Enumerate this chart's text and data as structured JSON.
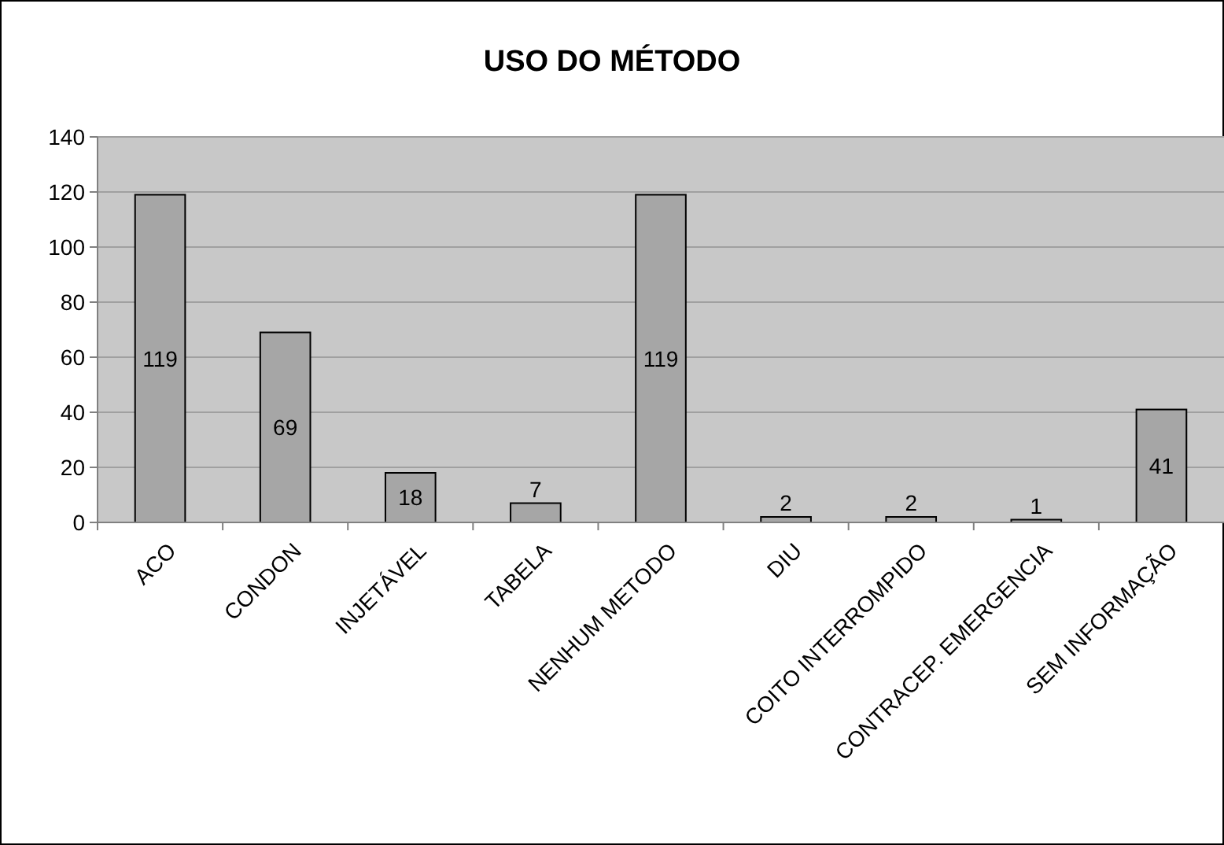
{
  "chart_data": {
    "type": "bar",
    "title": "USO DO MÉTODO",
    "categories": [
      "ACO",
      "CONDON",
      "INJETÁVEL",
      "TABELA",
      "NENHUM METODO",
      "DIU",
      "COITO INTERROMPIDO",
      "CONTRACEP. EMERGENCIA",
      "SEM INFORMAÇÃO"
    ],
    "values": [
      119,
      69,
      18,
      7,
      119,
      2,
      2,
      1,
      41
    ],
    "color": "#a6a6a6",
    "ylim": [
      0,
      140
    ],
    "yticks": [
      0,
      20,
      40,
      60,
      80,
      100,
      120,
      140
    ],
    "grid": "y",
    "data_labels": true
  }
}
